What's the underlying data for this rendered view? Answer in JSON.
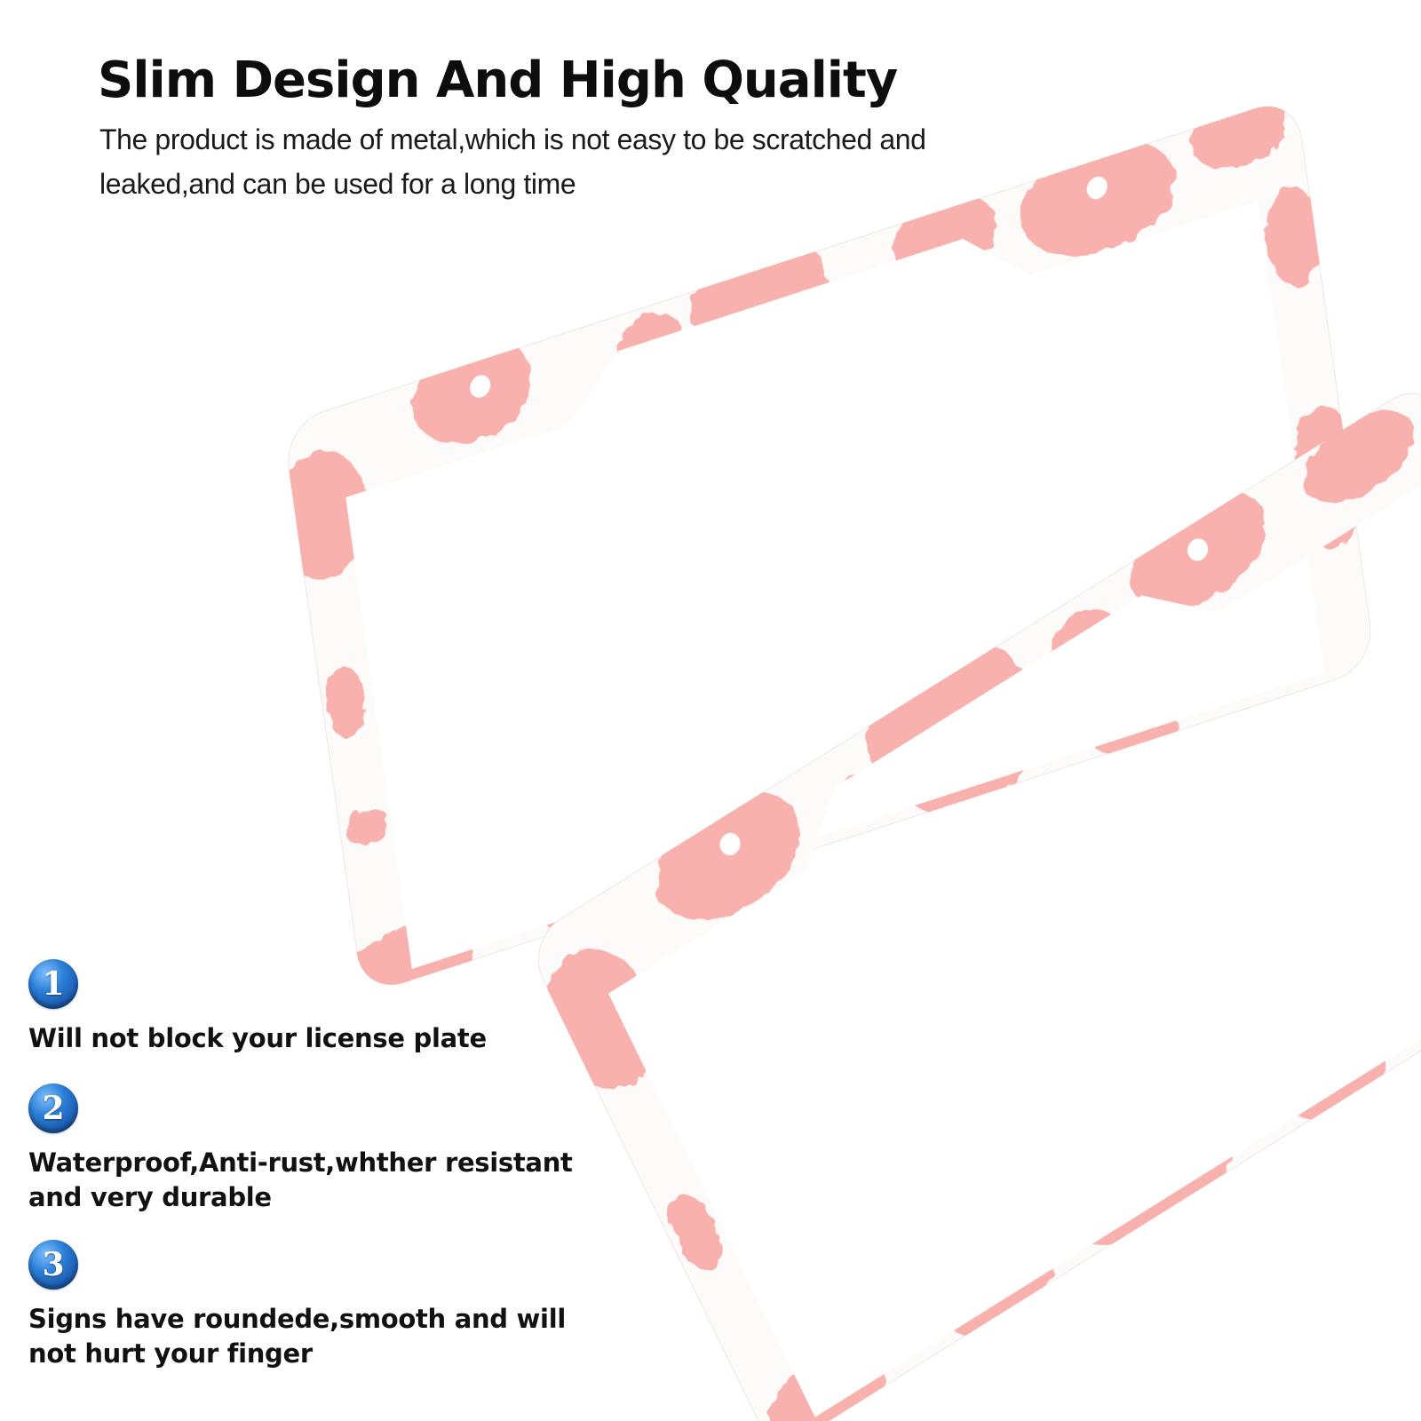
{
  "header": {
    "title": "Slim Design And High Quality",
    "subtitle": "The product is made of metal,which is not easy to be scratched and leaked,and can be used for a long time"
  },
  "features": [
    {
      "number": "1",
      "text": "Will not block your license plate"
    },
    {
      "number": "2",
      "text": "Waterproof,Anti-rust,whther resistant and very durable"
    },
    {
      "number": "3",
      "text": "Signs have roundede,smooth and will not hurt your finger"
    }
  ],
  "product": {
    "name": "pink-cow-print-license-plate-frames",
    "count": 2
  },
  "colors": {
    "frame": "#fdfafa",
    "spot": "#f9b1ad",
    "badge": "#2a7fd8",
    "text": "#111111"
  }
}
